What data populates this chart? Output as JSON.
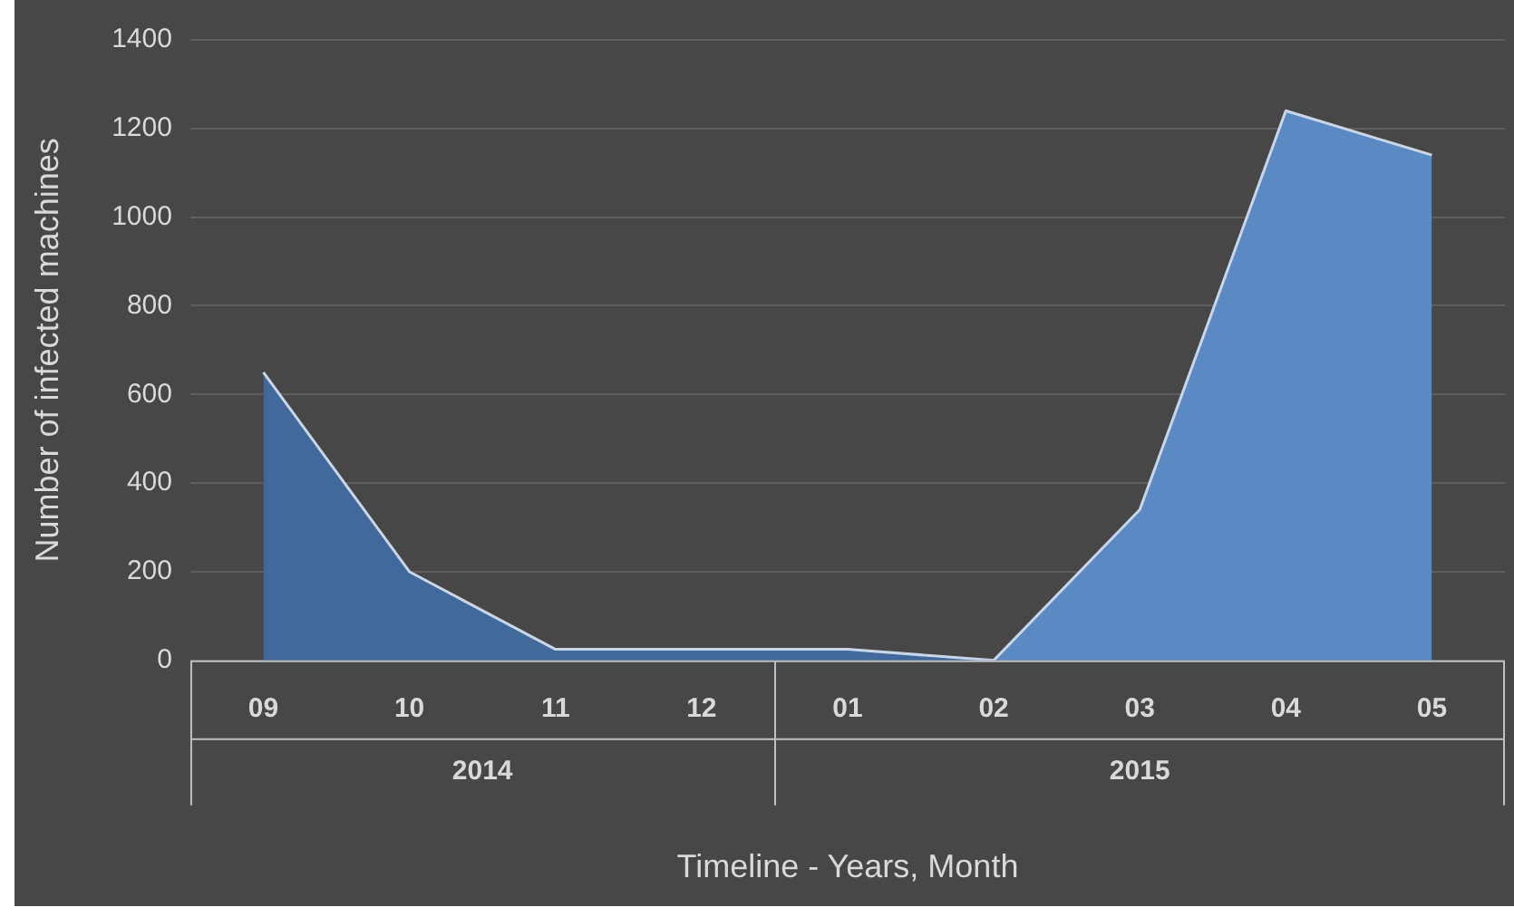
{
  "chart_data": {
    "type": "area",
    "xlabel": "Timeline - Years, Month",
    "ylabel": "Number of infected machines",
    "categories": [
      "09",
      "10",
      "11",
      "12",
      "01",
      "02",
      "03",
      "04",
      "05"
    ],
    "annotations": [
      "2014",
      "2015"
    ],
    "series": [
      {
        "color": "#41699b",
        "values": [
          650,
          200,
          25,
          25,
          25,
          0,
          null,
          null,
          null
        ]
      },
      {
        "color": "#5a89c4",
        "values": [
          null,
          null,
          null,
          null,
          null,
          0,
          340,
          1240,
          1140
        ]
      }
    ],
    "ylim": [
      0,
      1400
    ],
    "yticks": [
      0,
      200,
      400,
      600,
      800,
      1000,
      1200,
      1400
    ],
    "grid": "y",
    "legend": false
  }
}
